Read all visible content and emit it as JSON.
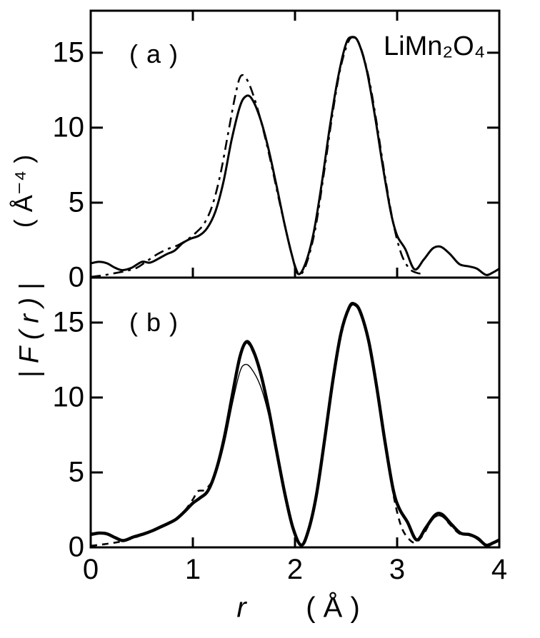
{
  "figure": {
    "compound": "LiMn₂O₄",
    "panel_a": {
      "tag": "( a )"
    },
    "panel_b": {
      "tag": "( b )"
    },
    "x_axis": {
      "quantity": "r",
      "units": "( Å )"
    },
    "y_axis": {
      "quantity": "| F ( r ) |",
      "units": "( Å⁻⁴ )"
    },
    "colors": {
      "ink": "#000000",
      "background": "#ffffff"
    }
  },
  "chart_data": [
    {
      "type": "line",
      "panel": "a",
      "title": "LiMn₂O₄",
      "xlabel": "r (Å)",
      "ylabel": "|F(r)| (Å⁻⁴)",
      "xlim": [
        0,
        4
      ],
      "ylim": [
        0,
        17.8
      ],
      "xticks": [
        0,
        1,
        2,
        3,
        4
      ],
      "xtick_marks": [
        1,
        2,
        3
      ],
      "yticks": [
        0,
        5,
        10,
        15
      ],
      "yticks_right": [
        5,
        10,
        15
      ],
      "show_x_tick_labels": false,
      "grid": false,
      "legend": "none",
      "series": [
        {
          "name": "solid-curve",
          "style": "solid",
          "width": 3,
          "points": [
            [
              0.0,
              0.95
            ],
            [
              0.08,
              1.05
            ],
            [
              0.16,
              0.95
            ],
            [
              0.24,
              0.65
            ],
            [
              0.31,
              0.5
            ],
            [
              0.4,
              0.65
            ],
            [
              0.5,
              1.05
            ],
            [
              0.58,
              1.0
            ],
            [
              0.66,
              1.25
            ],
            [
              0.74,
              1.55
            ],
            [
              0.82,
              1.8
            ],
            [
              0.9,
              2.3
            ],
            [
              0.98,
              2.6
            ],
            [
              1.06,
              2.8
            ],
            [
              1.14,
              3.3
            ],
            [
              1.22,
              4.4
            ],
            [
              1.3,
              6.4
            ],
            [
              1.38,
              9.2
            ],
            [
              1.46,
              11.4
            ],
            [
              1.52,
              12.1
            ],
            [
              1.58,
              11.9
            ],
            [
              1.66,
              10.6
            ],
            [
              1.74,
              8.6
            ],
            [
              1.82,
              6.1
            ],
            [
              1.9,
              3.5
            ],
            [
              1.97,
              1.5
            ],
            [
              2.03,
              0.25
            ],
            [
              2.1,
              0.9
            ],
            [
              2.18,
              2.9
            ],
            [
              2.26,
              6.2
            ],
            [
              2.34,
              10.0
            ],
            [
              2.42,
              13.3
            ],
            [
              2.5,
              15.6
            ],
            [
              2.56,
              16.05
            ],
            [
              2.62,
              15.7
            ],
            [
              2.7,
              13.9
            ],
            [
              2.78,
              10.9
            ],
            [
              2.86,
              7.4
            ],
            [
              2.94,
              4.3
            ],
            [
              3.0,
              2.8
            ],
            [
              3.08,
              1.9
            ],
            [
              3.17,
              0.55
            ],
            [
              3.26,
              1.2
            ],
            [
              3.35,
              1.95
            ],
            [
              3.43,
              2.05
            ],
            [
              3.52,
              1.55
            ],
            [
              3.61,
              0.9
            ],
            [
              3.7,
              0.75
            ],
            [
              3.78,
              0.6
            ],
            [
              3.87,
              0.18
            ],
            [
              3.94,
              0.35
            ],
            [
              4.0,
              0.6
            ]
          ]
        },
        {
          "name": "dash-dot-curve",
          "style": "dash-dot",
          "width": 2.6,
          "points": [
            [
              0.0,
              0.05
            ],
            [
              0.12,
              0.15
            ],
            [
              0.24,
              0.3
            ],
            [
              0.35,
              0.45
            ],
            [
              0.45,
              0.65
            ],
            [
              0.55,
              1.1
            ],
            [
              0.65,
              1.55
            ],
            [
              0.75,
              1.9
            ],
            [
              0.85,
              2.15
            ],
            [
              0.95,
              2.55
            ],
            [
              1.03,
              3.0
            ],
            [
              1.11,
              3.6
            ],
            [
              1.19,
              4.8
            ],
            [
              1.27,
              6.9
            ],
            [
              1.35,
              9.8
            ],
            [
              1.42,
              12.3
            ],
            [
              1.47,
              13.45
            ],
            [
              1.53,
              13.2
            ],
            [
              1.6,
              12.0
            ],
            [
              1.68,
              10.1
            ],
            [
              1.76,
              7.8
            ],
            [
              1.84,
              5.3
            ],
            [
              1.92,
              2.9
            ],
            [
              1.99,
              1.0
            ],
            [
              2.05,
              0.2
            ],
            [
              2.12,
              1.1
            ],
            [
              2.2,
              3.3
            ],
            [
              2.28,
              6.8
            ],
            [
              2.36,
              10.6
            ],
            [
              2.44,
              13.8
            ],
            [
              2.52,
              15.7
            ],
            [
              2.58,
              16.0
            ],
            [
              2.64,
              15.4
            ],
            [
              2.72,
              13.4
            ],
            [
              2.8,
              10.3
            ],
            [
              2.88,
              6.8
            ],
            [
              2.96,
              3.7
            ],
            [
              3.04,
              1.6
            ],
            [
              3.12,
              0.6
            ],
            [
              3.2,
              0.3
            ],
            [
              3.25,
              0.28
            ]
          ]
        }
      ]
    },
    {
      "type": "line",
      "panel": "b",
      "title": "LiMn₂O₄",
      "xlabel": "r (Å)",
      "ylabel": "|F(r)| (Å⁻⁴)",
      "xlim": [
        0,
        4
      ],
      "ylim": [
        0,
        18.0
      ],
      "xticks": [
        0,
        1,
        2,
        3,
        4
      ],
      "xtick_marks": [
        1,
        2,
        3
      ],
      "yticks": [
        0,
        5,
        10,
        15
      ],
      "yticks_right": [
        5,
        10,
        15
      ],
      "show_x_tick_labels": true,
      "grid": false,
      "legend": "none",
      "series": [
        {
          "name": "thick-solid-curve",
          "style": "solid",
          "width": 4.4,
          "points": [
            [
              0.0,
              0.85
            ],
            [
              0.08,
              0.95
            ],
            [
              0.16,
              0.9
            ],
            [
              0.24,
              0.65
            ],
            [
              0.32,
              0.45
            ],
            [
              0.42,
              0.7
            ],
            [
              0.52,
              0.9
            ],
            [
              0.6,
              1.1
            ],
            [
              0.68,
              1.35
            ],
            [
              0.76,
              1.6
            ],
            [
              0.84,
              1.9
            ],
            [
              0.92,
              2.4
            ],
            [
              1.0,
              2.95
            ],
            [
              1.07,
              3.3
            ],
            [
              1.15,
              3.8
            ],
            [
              1.23,
              5.2
            ],
            [
              1.31,
              7.4
            ],
            [
              1.39,
              10.3
            ],
            [
              1.46,
              12.7
            ],
            [
              1.52,
              13.7
            ],
            [
              1.58,
              13.3
            ],
            [
              1.66,
              11.7
            ],
            [
              1.74,
              9.3
            ],
            [
              1.82,
              6.4
            ],
            [
              1.9,
              3.6
            ],
            [
              1.98,
              1.3
            ],
            [
              2.06,
              0.15
            ],
            [
              2.13,
              1.1
            ],
            [
              2.21,
              3.5
            ],
            [
              2.29,
              7.2
            ],
            [
              2.37,
              11.1
            ],
            [
              2.45,
              14.3
            ],
            [
              2.53,
              16.0
            ],
            [
              2.58,
              16.25
            ],
            [
              2.64,
              15.7
            ],
            [
              2.72,
              13.8
            ],
            [
              2.8,
              10.7
            ],
            [
              2.88,
              7.1
            ],
            [
              2.96,
              3.9
            ],
            [
              3.02,
              2.6
            ],
            [
              3.1,
              1.7
            ],
            [
              3.19,
              0.5
            ],
            [
              3.28,
              1.3
            ],
            [
              3.37,
              2.15
            ],
            [
              3.44,
              2.2
            ],
            [
              3.53,
              1.55
            ],
            [
              3.62,
              0.95
            ],
            [
              3.71,
              0.85
            ],
            [
              3.79,
              0.6
            ],
            [
              3.87,
              0.15
            ],
            [
              3.94,
              0.3
            ],
            [
              4.0,
              0.5
            ]
          ]
        },
        {
          "name": "thin-solid-curve",
          "style": "solid",
          "width": 1.4,
          "points": [
            [
              0.0,
              0.95
            ],
            [
              0.08,
              1.0
            ],
            [
              0.16,
              0.92
            ],
            [
              0.24,
              0.68
            ],
            [
              0.32,
              0.5
            ],
            [
              0.42,
              0.72
            ],
            [
              0.52,
              0.92
            ],
            [
              0.6,
              1.12
            ],
            [
              0.68,
              1.36
            ],
            [
              0.76,
              1.6
            ],
            [
              0.84,
              1.88
            ],
            [
              0.92,
              2.36
            ],
            [
              1.0,
              2.9
            ],
            [
              1.07,
              3.22
            ],
            [
              1.15,
              3.7
            ],
            [
              1.23,
              5.0
            ],
            [
              1.31,
              7.0
            ],
            [
              1.39,
              9.7
            ],
            [
              1.46,
              11.7
            ],
            [
              1.51,
              12.2
            ],
            [
              1.57,
              11.95
            ],
            [
              1.66,
              10.8
            ],
            [
              1.74,
              8.9
            ],
            [
              1.82,
              6.2
            ],
            [
              1.9,
              3.5
            ],
            [
              1.98,
              1.25
            ],
            [
              2.06,
              0.2
            ],
            [
              2.13,
              1.1
            ],
            [
              2.21,
              3.5
            ],
            [
              2.29,
              7.2
            ],
            [
              2.37,
              11.0
            ],
            [
              2.45,
              14.2
            ],
            [
              2.53,
              15.95
            ],
            [
              2.58,
              16.15
            ],
            [
              2.64,
              15.6
            ],
            [
              2.72,
              13.7
            ],
            [
              2.8,
              10.6
            ],
            [
              2.88,
              7.0
            ],
            [
              2.96,
              3.85
            ],
            [
              3.02,
              2.5
            ],
            [
              3.1,
              1.6
            ],
            [
              3.19,
              0.45
            ],
            [
              3.28,
              1.2
            ],
            [
              3.37,
              2.0
            ],
            [
              3.44,
              2.05
            ],
            [
              3.53,
              1.45
            ],
            [
              3.62,
              0.9
            ],
            [
              3.71,
              0.8
            ],
            [
              3.79,
              0.55
            ],
            [
              3.87,
              0.12
            ],
            [
              3.94,
              0.28
            ],
            [
              4.0,
              0.45
            ]
          ]
        },
        {
          "name": "dashed-curve",
          "style": "dashed",
          "width": 2.6,
          "points": [
            [
              0.0,
              0.1
            ],
            [
              0.12,
              0.2
            ],
            [
              0.24,
              0.32
            ],
            [
              0.34,
              0.45
            ],
            [
              0.44,
              0.68
            ],
            [
              0.54,
              0.92
            ],
            [
              0.64,
              1.2
            ],
            [
              0.74,
              1.5
            ],
            [
              0.84,
              1.95
            ],
            [
              0.92,
              2.45
            ],
            [
              1.0,
              3.2
            ],
            [
              1.05,
              3.75
            ],
            [
              1.12,
              3.85
            ],
            [
              1.2,
              4.6
            ],
            [
              1.28,
              6.5
            ],
            [
              1.36,
              9.3
            ],
            [
              1.44,
              12.1
            ],
            [
              1.51,
              13.6
            ],
            [
              1.57,
              13.3
            ],
            [
              1.65,
              11.9
            ],
            [
              1.73,
              9.6
            ],
            [
              1.81,
              6.7
            ],
            [
              1.89,
              3.9
            ],
            [
              1.97,
              1.5
            ],
            [
              2.06,
              0.15
            ],
            [
              2.14,
              1.3
            ],
            [
              2.22,
              3.9
            ],
            [
              2.3,
              7.7
            ],
            [
              2.38,
              11.5
            ],
            [
              2.46,
              14.6
            ],
            [
              2.54,
              16.05
            ],
            [
              2.6,
              16.1
            ],
            [
              2.66,
              15.4
            ],
            [
              2.74,
              13.2
            ],
            [
              2.82,
              9.9
            ],
            [
              2.9,
              6.3
            ],
            [
              2.97,
              3.3
            ],
            [
              3.04,
              1.4
            ],
            [
              3.11,
              0.6
            ],
            [
              3.18,
              0.32
            ],
            [
              3.26,
              0.9
            ],
            [
              3.35,
              1.95
            ],
            [
              3.43,
              2.15
            ],
            [
              3.52,
              1.5
            ],
            [
              3.61,
              0.92
            ],
            [
              3.7,
              0.82
            ],
            [
              3.78,
              0.58
            ],
            [
              3.87,
              0.14
            ],
            [
              3.94,
              0.3
            ],
            [
              4.0,
              0.48
            ]
          ]
        }
      ]
    }
  ]
}
